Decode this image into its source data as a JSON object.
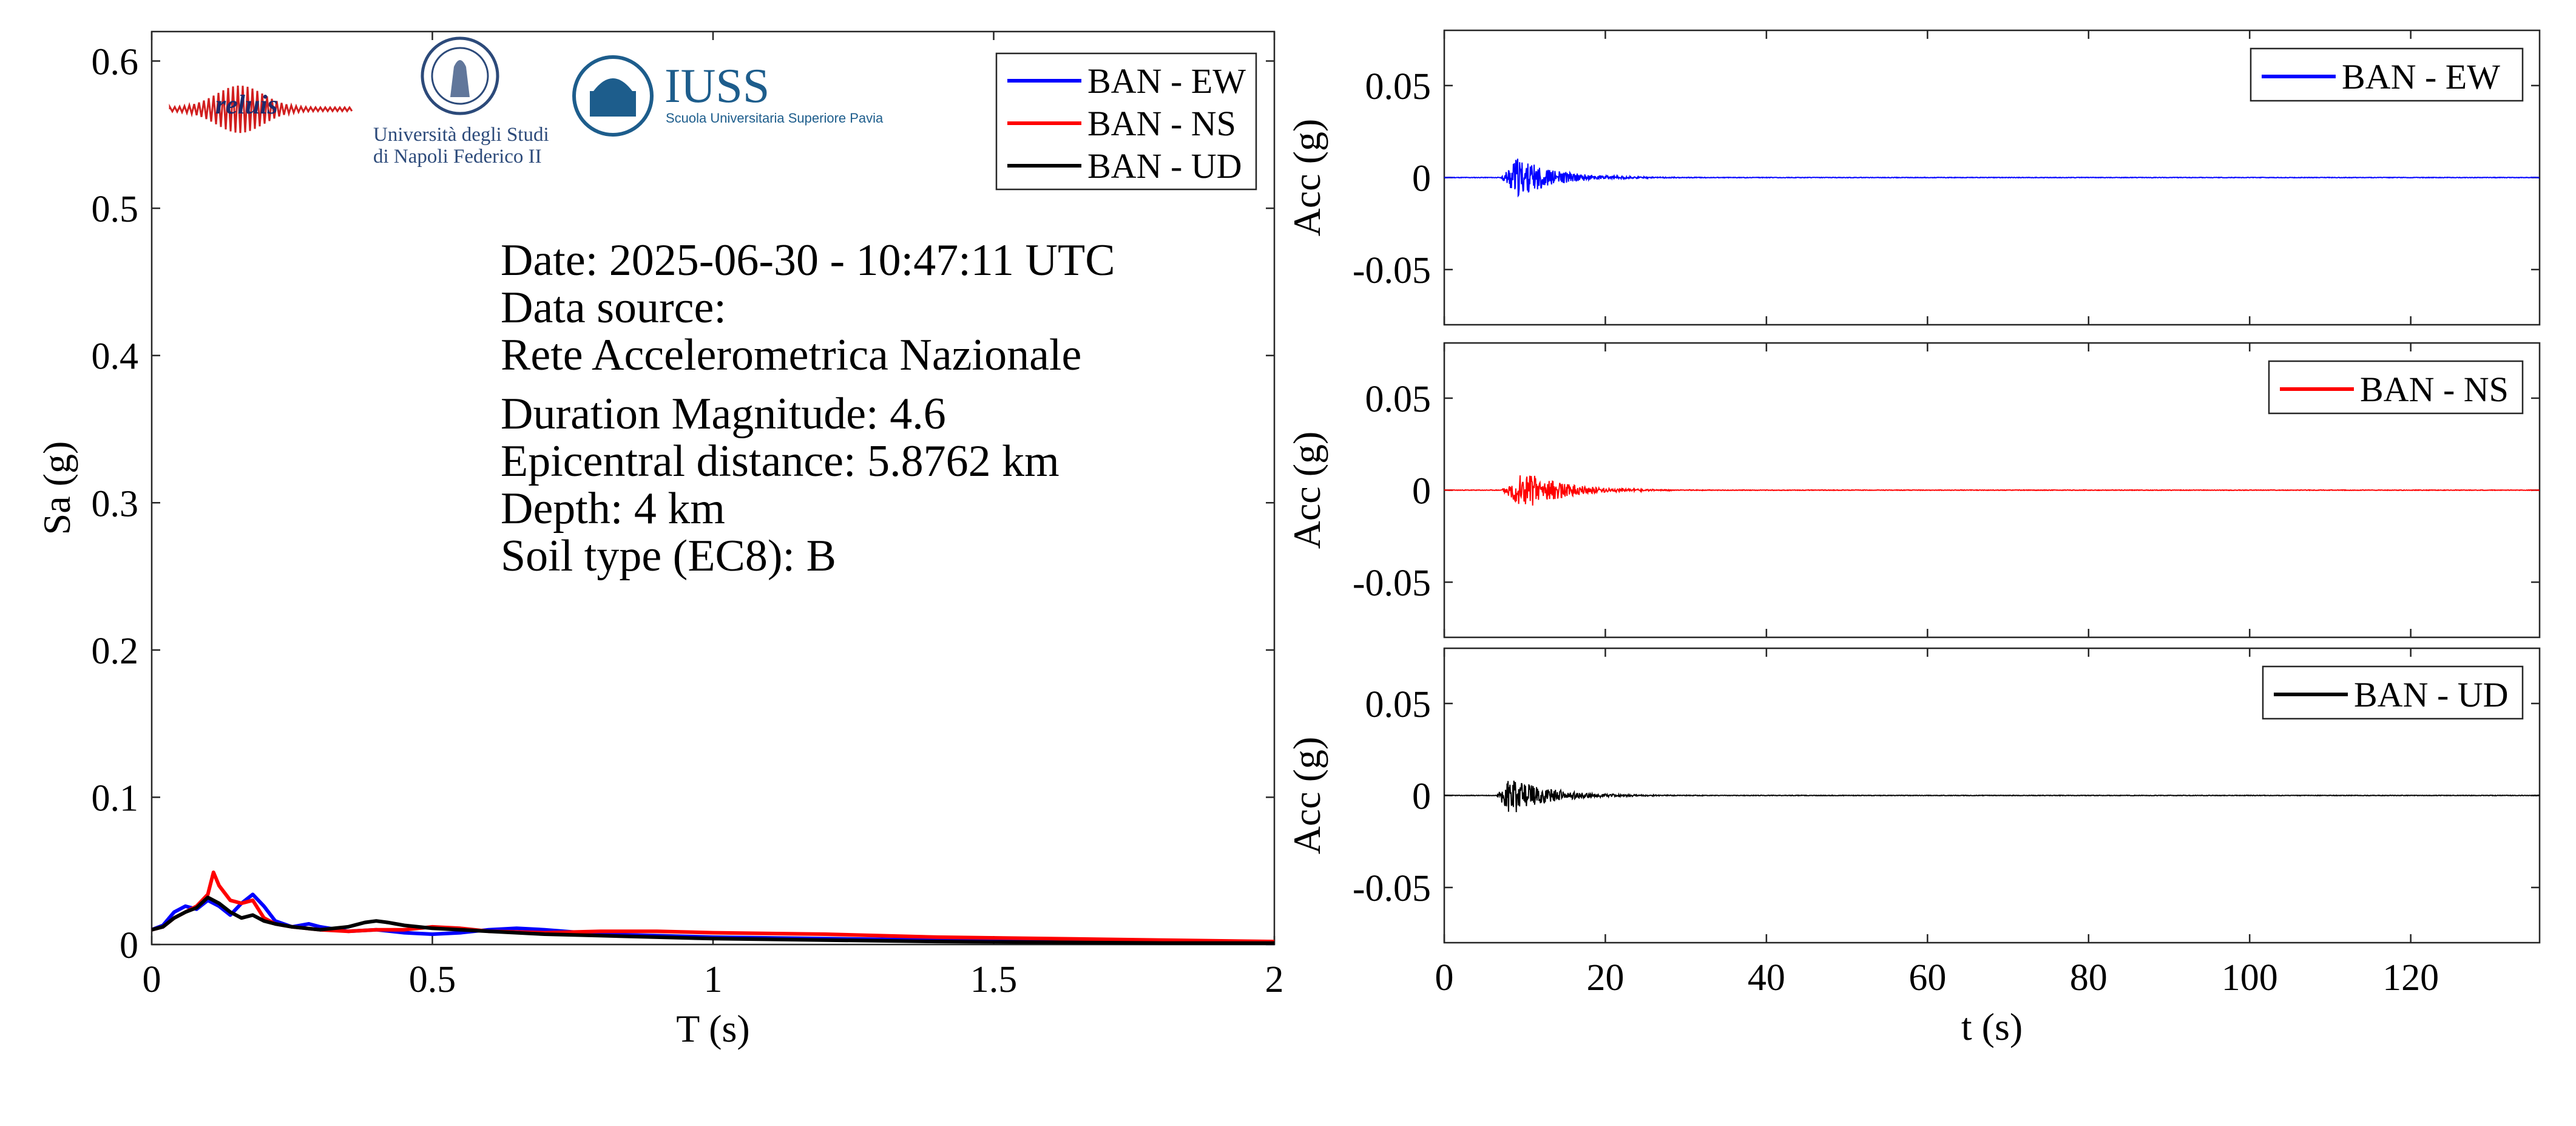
{
  "logos": {
    "reluis": "reluis",
    "unina_line1": "Università degli Studi",
    "unina_line2": "di Napoli Federico II",
    "iuss": "IUSS",
    "iuss_sub": "Scuola Universitaria Superiore Pavia"
  },
  "info": {
    "date": "Date: 2025-06-30 - 10:47:11 UTC",
    "source_label": "Data source:",
    "source_value": "Rete Accelerometrica Nazionale",
    "magnitude": "Duration Magnitude: 4.6",
    "distance": "Epicentral distance: 5.8762 km",
    "depth": "Depth: 4 km",
    "soil": "Soil type (EC8): B"
  },
  "colors": {
    "ew": "#0000ff",
    "ns": "#ff0000",
    "ud": "#000000",
    "axis": "#262626"
  },
  "chart_data": [
    {
      "type": "line",
      "xlabel": "T (s)",
      "ylabel": "Sa (g)",
      "xlim": [
        0,
        2
      ],
      "ylim": [
        0,
        0.62
      ],
      "xticks": [
        0,
        0.5,
        1,
        1.5,
        2
      ],
      "xtick_labels": [
        "0",
        "0.5",
        "1",
        "1.5",
        "2"
      ],
      "yticks": [
        0,
        0.1,
        0.2,
        0.3,
        0.4,
        0.5,
        0.6
      ],
      "ytick_labels": [
        "0",
        "0.1",
        "0.2",
        "0.3",
        "0.4",
        "0.5",
        "0.6"
      ],
      "legend_position": "top-right",
      "series": [
        {
          "name": "BAN - EW",
          "color": "#0000ff",
          "x": [
            0,
            0.02,
            0.04,
            0.06,
            0.08,
            0.1,
            0.12,
            0.14,
            0.16,
            0.18,
            0.2,
            0.22,
            0.25,
            0.28,
            0.3,
            0.35,
            0.4,
            0.45,
            0.5,
            0.55,
            0.6,
            0.65,
            0.7,
            0.8,
            0.9,
            1.0,
            1.2,
            1.4,
            1.6,
            1.8,
            2.0
          ],
          "y": [
            0.01,
            0.013,
            0.022,
            0.026,
            0.024,
            0.03,
            0.026,
            0.02,
            0.028,
            0.034,
            0.026,
            0.016,
            0.012,
            0.014,
            0.012,
            0.009,
            0.01,
            0.008,
            0.007,
            0.008,
            0.01,
            0.011,
            0.01,
            0.007,
            0.006,
            0.005,
            0.004,
            0.003,
            0.002,
            0.0015,
            0.001
          ]
        },
        {
          "name": "BAN - NS",
          "color": "#ff0000",
          "x": [
            0,
            0.02,
            0.04,
            0.06,
            0.08,
            0.1,
            0.11,
            0.12,
            0.14,
            0.16,
            0.18,
            0.2,
            0.22,
            0.25,
            0.3,
            0.35,
            0.4,
            0.45,
            0.5,
            0.55,
            0.6,
            0.7,
            0.8,
            0.9,
            1.0,
            1.2,
            1.4,
            1.6,
            1.8,
            2.0
          ],
          "y": [
            0.01,
            0.012,
            0.018,
            0.022,
            0.026,
            0.034,
            0.049,
            0.04,
            0.03,
            0.028,
            0.03,
            0.018,
            0.014,
            0.012,
            0.01,
            0.009,
            0.01,
            0.01,
            0.012,
            0.011,
            0.009,
            0.008,
            0.009,
            0.009,
            0.008,
            0.007,
            0.005,
            0.004,
            0.003,
            0.002
          ]
        },
        {
          "name": "BAN - UD",
          "color": "#000000",
          "x": [
            0,
            0.02,
            0.04,
            0.06,
            0.08,
            0.1,
            0.12,
            0.14,
            0.16,
            0.18,
            0.2,
            0.22,
            0.25,
            0.3,
            0.35,
            0.38,
            0.4,
            0.42,
            0.45,
            0.5,
            0.55,
            0.6,
            0.7,
            0.8,
            0.9,
            1.0,
            1.2,
            1.4,
            1.6,
            1.8,
            2.0
          ],
          "y": [
            0.01,
            0.012,
            0.018,
            0.022,
            0.025,
            0.032,
            0.028,
            0.022,
            0.018,
            0.02,
            0.016,
            0.014,
            0.012,
            0.01,
            0.012,
            0.015,
            0.016,
            0.015,
            0.013,
            0.011,
            0.01,
            0.009,
            0.007,
            0.006,
            0.005,
            0.004,
            0.003,
            0.002,
            0.0015,
            0.001,
            0.001
          ]
        }
      ]
    },
    {
      "type": "line",
      "xlabel": "",
      "ylabel": "Acc (g)",
      "xlim": [
        0,
        136
      ],
      "ylim": [
        -0.08,
        0.08
      ],
      "yticks": [
        0.05,
        0,
        -0.05
      ],
      "ytick_labels": [
        "0.05",
        "0",
        "-0.05"
      ],
      "xticks": [
        0,
        20,
        40,
        60,
        80,
        100,
        120
      ],
      "legend_position": "top-right",
      "series": [
        {
          "name": "BAN - EW",
          "color": "#0000ff",
          "onset_s": 7,
          "peak_s": 9,
          "peak_g": 0.011,
          "duration_s": 14
        }
      ]
    },
    {
      "type": "line",
      "xlabel": "",
      "ylabel": "Acc (g)",
      "xlim": [
        0,
        136
      ],
      "ylim": [
        -0.08,
        0.08
      ],
      "yticks": [
        0.05,
        0,
        -0.05
      ],
      "ytick_labels": [
        "0.05",
        "0",
        "-0.05"
      ],
      "xticks": [
        0,
        20,
        40,
        60,
        80,
        100,
        120
      ],
      "legend_position": "top-right",
      "series": [
        {
          "name": "BAN - NS",
          "color": "#ff0000",
          "onset_s": 7,
          "peak_s": 10,
          "peak_g": 0.011,
          "duration_s": 14
        }
      ]
    },
    {
      "type": "line",
      "xlabel": "t (s)",
      "ylabel": "Acc (g)",
      "xlim": [
        0,
        136
      ],
      "ylim": [
        -0.08,
        0.08
      ],
      "yticks": [
        0.05,
        0,
        -0.05
      ],
      "ytick_labels": [
        "0.05",
        "0",
        "-0.05"
      ],
      "xticks": [
        0,
        20,
        40,
        60,
        80,
        100,
        120
      ],
      "xtick_labels": [
        "0",
        "20",
        "40",
        "60",
        "80",
        "100",
        "120"
      ],
      "legend_position": "top-right",
      "series": [
        {
          "name": "BAN - UD",
          "color": "#000000",
          "onset_s": 6.5,
          "peak_s": 8,
          "peak_g": 0.011,
          "duration_s": 14
        }
      ]
    }
  ]
}
